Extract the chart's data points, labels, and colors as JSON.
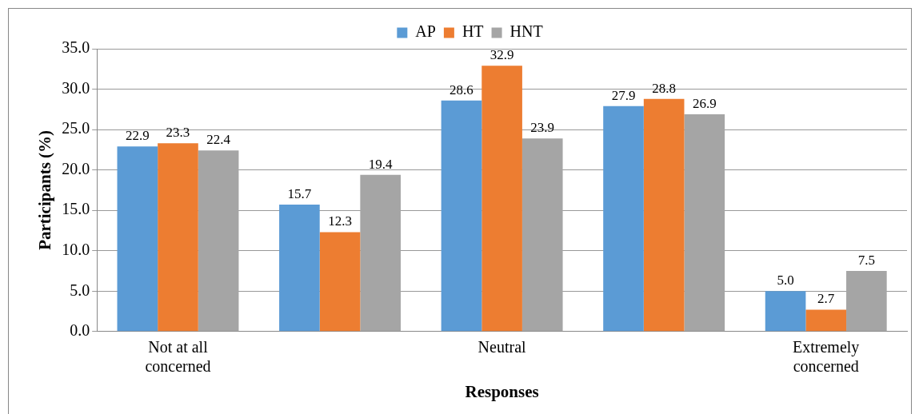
{
  "chart_data": {
    "type": "bar",
    "xlabel": "Responses",
    "ylabel": "Participants (%)",
    "categories": [
      "Not at all concerned",
      null,
      "Neutral",
      null,
      "Extremely concerned"
    ],
    "series": [
      {
        "name": "AP",
        "color": "#5b9bd5",
        "values": [
          22.9,
          15.7,
          28.6,
          27.9,
          5.0
        ],
        "value_labels": [
          "22.9",
          "15.7",
          "28.6",
          "27.9",
          "5.0"
        ]
      },
      {
        "name": "HT",
        "color": "#ed7d31",
        "values": [
          23.3,
          12.3,
          32.9,
          28.8,
          2.7
        ],
        "value_labels": [
          "23.3",
          "12.3",
          "32.9",
          "28.8",
          "2.7"
        ]
      },
      {
        "name": "HNT",
        "color": "#a5a5a5",
        "values": [
          22.4,
          19.4,
          23.9,
          26.9,
          7.5
        ],
        "value_labels": [
          "22.4",
          "19.4",
          "23.9",
          "26.9",
          "7.5"
        ]
      }
    ],
    "ylim": [
      0,
      35
    ],
    "yticks": [
      {
        "value": 0,
        "label": "0.0"
      },
      {
        "value": 5,
        "label": "5.0"
      },
      {
        "value": 10,
        "label": "10.0"
      },
      {
        "value": 15,
        "label": "15.0"
      },
      {
        "value": 20,
        "label": "20.0"
      },
      {
        "value": 25,
        "label": "25.0"
      },
      {
        "value": 30,
        "label": "30.0"
      },
      {
        "value": 35,
        "label": "35.0"
      }
    ],
    "grid": "y",
    "legend": "top"
  }
}
